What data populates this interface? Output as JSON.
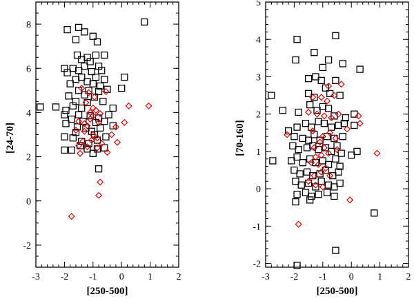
{
  "chart_data": [
    {
      "type": "scatter",
      "title": "",
      "xlabel": "[250-500]",
      "ylabel": "[24-70]",
      "xlim": [
        -3,
        2
      ],
      "ylim": [
        -3,
        9
      ],
      "xticks": [
        "-3",
        "-2",
        "-1",
        "0",
        "1",
        "2"
      ],
      "yticks": [
        "-2",
        "0",
        "2",
        "4",
        "6",
        "8"
      ],
      "series": [
        {
          "name": "black squares",
          "marker": "square",
          "color": "#000000",
          "points": [
            [
              -1.9,
              7.75
            ],
            [
              -1.5,
              7.85
            ],
            [
              -1.3,
              7.65
            ],
            [
              -1.6,
              7.3
            ],
            [
              -1.0,
              7.45
            ],
            [
              -0.85,
              7.2
            ],
            [
              0.8,
              8.1
            ],
            [
              -1.4,
              6.4
            ],
            [
              -1.2,
              6.5
            ],
            [
              -1.1,
              6.3
            ],
            [
              -0.9,
              6.6
            ],
            [
              -1.55,
              6.6
            ],
            [
              -0.6,
              6.6
            ],
            [
              -2.0,
              6.0
            ],
            [
              -1.7,
              6.0
            ],
            [
              -1.9,
              5.8
            ],
            [
              -1.5,
              5.9
            ],
            [
              -1.3,
              6.1
            ],
            [
              -0.8,
              6.1
            ],
            [
              -0.7,
              5.9
            ],
            [
              -1.05,
              5.85
            ],
            [
              -1.6,
              5.5
            ],
            [
              -1.4,
              5.6
            ],
            [
              -1.2,
              5.4
            ],
            [
              -0.9,
              5.6
            ],
            [
              -0.6,
              5.5
            ],
            [
              0.1,
              5.6
            ],
            [
              -1.8,
              5.3
            ],
            [
              -1.0,
              5.3
            ],
            [
              -0.75,
              5.2
            ],
            [
              -1.5,
              5.0
            ],
            [
              -1.15,
              5.0
            ],
            [
              -0.8,
              4.95
            ],
            [
              -0.5,
              5.05
            ],
            [
              0.0,
              5.1
            ],
            [
              -1.3,
              4.8
            ],
            [
              -1.85,
              4.75
            ],
            [
              -0.95,
              4.7
            ],
            [
              -2.85,
              4.25
            ],
            [
              -2.3,
              4.25
            ],
            [
              -1.95,
              4.1
            ],
            [
              -1.7,
              4.3
            ],
            [
              -1.4,
              4.2
            ],
            [
              -1.6,
              4.5
            ],
            [
              -1.2,
              4.45
            ],
            [
              -0.65,
              4.5
            ],
            [
              -0.3,
              4.2
            ],
            [
              -2.0,
              3.9
            ],
            [
              -1.5,
              3.9
            ],
            [
              -1.1,
              3.85
            ],
            [
              -0.8,
              3.75
            ],
            [
              -0.45,
              3.9
            ],
            [
              -1.75,
              3.7
            ],
            [
              -1.35,
              3.6
            ],
            [
              -0.9,
              3.55
            ],
            [
              -0.6,
              3.6
            ],
            [
              -1.95,
              3.5
            ],
            [
              -1.55,
              3.35
            ],
            [
              -1.25,
              3.3
            ],
            [
              -0.75,
              3.3
            ],
            [
              -0.3,
              3.4
            ],
            [
              -1.6,
              3.1
            ],
            [
              -1.05,
              3.15
            ],
            [
              -0.95,
              3.0
            ],
            [
              -2.0,
              2.9
            ],
            [
              -1.7,
              2.85
            ],
            [
              -1.4,
              2.7
            ],
            [
              -1.15,
              2.6
            ],
            [
              -0.85,
              2.75
            ],
            [
              -0.55,
              2.9
            ],
            [
              -1.45,
              2.5
            ],
            [
              -0.6,
              2.4
            ],
            [
              -2.0,
              2.3
            ],
            [
              -1.75,
              2.3
            ],
            [
              -1.2,
              2.35
            ],
            [
              -0.85,
              2.35
            ],
            [
              -1.0,
              2.15
            ],
            [
              -0.8,
              1.45
            ]
          ]
        },
        {
          "name": "red diamonds",
          "marker": "diamond",
          "color": "#e00000",
          "points": [
            [
              -1.4,
              5.1
            ],
            [
              -1.15,
              4.9
            ],
            [
              -0.95,
              4.7
            ],
            [
              -0.55,
              4.95
            ],
            [
              -1.25,
              4.45
            ],
            [
              -1.0,
              4.2
            ],
            [
              -0.9,
              4.1
            ],
            [
              -1.1,
              4.0
            ],
            [
              -0.75,
              3.95
            ],
            [
              -1.0,
              3.85
            ],
            [
              0.25,
              4.3
            ],
            [
              0.95,
              4.3
            ],
            [
              -1.5,
              3.6
            ],
            [
              -1.3,
              3.5
            ],
            [
              -1.1,
              3.7
            ],
            [
              -0.8,
              3.55
            ],
            [
              -1.2,
              3.4
            ],
            [
              0.1,
              3.55
            ],
            [
              -0.2,
              3.35
            ],
            [
              -1.6,
              3.2
            ],
            [
              -1.3,
              3.15
            ],
            [
              -1.0,
              3.0
            ],
            [
              -0.35,
              3.0
            ],
            [
              -0.85,
              2.85
            ],
            [
              -1.05,
              2.75
            ],
            [
              -1.35,
              2.7
            ],
            [
              -0.7,
              2.6
            ],
            [
              -1.5,
              2.5
            ],
            [
              -1.2,
              2.45
            ],
            [
              -0.85,
              2.4
            ],
            [
              -0.15,
              2.65
            ],
            [
              -1.45,
              2.15
            ],
            [
              -0.5,
              2.2
            ],
            [
              -0.75,
              0.85
            ],
            [
              -0.8,
              0.25
            ],
            [
              -1.75,
              -0.7
            ]
          ]
        }
      ]
    },
    {
      "type": "scatter",
      "title": "",
      "xlabel": "[250-500]",
      "ylabel": "[70-160]",
      "xlim": [
        -3,
        2
      ],
      "ylim": [
        -2.1,
        5
      ],
      "xticks": [
        "-3",
        "-2",
        "-1",
        "0",
        "1",
        "2"
      ],
      "yticks": [
        "-2",
        "-1",
        "0",
        "1",
        "2",
        "3",
        "4",
        "5"
      ],
      "series": [
        {
          "name": "black squares",
          "marker": "square",
          "color": "#000000",
          "points": [
            [
              -1.9,
              4.0
            ],
            [
              -0.55,
              4.1
            ],
            [
              -1.3,
              3.65
            ],
            [
              -1.95,
              3.45
            ],
            [
              -0.8,
              3.45
            ],
            [
              -0.3,
              3.35
            ],
            [
              0.3,
              3.2
            ],
            [
              -1.0,
              3.25
            ],
            [
              -2.8,
              2.5
            ],
            [
              -1.5,
              2.95
            ],
            [
              -1.25,
              3.0
            ],
            [
              -1.05,
              2.9
            ],
            [
              -0.55,
              2.9
            ],
            [
              -1.5,
              2.55
            ],
            [
              -1.3,
              2.45
            ],
            [
              -0.9,
              2.7
            ],
            [
              -0.75,
              2.55
            ],
            [
              -0.4,
              2.5
            ],
            [
              -2.4,
              2.1
            ],
            [
              -1.85,
              2.05
            ],
            [
              -1.45,
              2.25
            ],
            [
              -1.2,
              2.1
            ],
            [
              -1.0,
              2.2
            ],
            [
              -0.8,
              2.15
            ],
            [
              -0.6,
              1.95
            ],
            [
              -0.2,
              1.9
            ],
            [
              0.1,
              2.0
            ],
            [
              -2.2,
              1.55
            ],
            [
              -1.9,
              1.65
            ],
            [
              -1.6,
              1.75
            ],
            [
              -1.4,
              1.65
            ],
            [
              -1.15,
              1.8
            ],
            [
              -0.95,
              1.75
            ],
            [
              -0.7,
              1.65
            ],
            [
              -0.45,
              1.7
            ],
            [
              -0.25,
              1.75
            ],
            [
              0.1,
              1.7
            ],
            [
              -2.0,
              1.4
            ],
            [
              -1.7,
              1.35
            ],
            [
              -1.5,
              1.3
            ],
            [
              -1.3,
              1.45
            ],
            [
              -1.1,
              1.3
            ],
            [
              -0.85,
              1.4
            ],
            [
              -0.6,
              1.35
            ],
            [
              -0.3,
              1.4
            ],
            [
              -2.05,
              1.15
            ],
            [
              -1.85,
              1.05
            ],
            [
              -1.55,
              1.1
            ],
            [
              -1.35,
              1.15
            ],
            [
              -1.15,
              1.05
            ],
            [
              -0.9,
              1.1
            ],
            [
              -0.7,
              1.0
            ],
            [
              -0.5,
              1.15
            ],
            [
              -0.35,
              0.95
            ],
            [
              0.2,
              1.0
            ],
            [
              0.0,
              0.9
            ],
            [
              -2.75,
              0.75
            ],
            [
              -2.1,
              0.75
            ],
            [
              -1.9,
              0.85
            ],
            [
              -1.7,
              0.7
            ],
            [
              -1.45,
              0.8
            ],
            [
              -1.25,
              0.7
            ],
            [
              -1.0,
              0.75
            ],
            [
              -0.8,
              0.65
            ],
            [
              -0.55,
              0.8
            ],
            [
              -0.4,
              0.6
            ],
            [
              -2.0,
              0.5
            ],
            [
              -1.8,
              0.4
            ],
            [
              -1.55,
              0.45
            ],
            [
              -1.35,
              0.35
            ],
            [
              -1.1,
              0.4
            ],
            [
              -0.9,
              0.5
            ],
            [
              -0.65,
              0.35
            ],
            [
              -0.45,
              0.45
            ],
            [
              -1.95,
              0.2
            ],
            [
              -1.75,
              0.1
            ],
            [
              -1.5,
              0.15
            ],
            [
              -1.25,
              0.05
            ],
            [
              -1.05,
              0.2
            ],
            [
              -0.8,
              0.1
            ],
            [
              -0.6,
              0.05
            ],
            [
              -0.4,
              0.15
            ],
            [
              -1.9,
              -0.15
            ],
            [
              -1.6,
              -0.1
            ],
            [
              -1.4,
              -0.2
            ],
            [
              -1.15,
              -0.15
            ],
            [
              -0.85,
              -0.1
            ],
            [
              -0.6,
              -0.2
            ],
            [
              -1.95,
              -0.35
            ],
            [
              -1.45,
              -0.3
            ],
            [
              0.8,
              -0.65
            ],
            [
              -0.55,
              -1.65
            ],
            [
              -1.9,
              -2.05
            ]
          ]
        },
        {
          "name": "red diamonds",
          "marker": "diamond",
          "color": "#e00000",
          "points": [
            [
              -0.35,
              2.8
            ],
            [
              -0.8,
              2.75
            ],
            [
              -1.05,
              2.45
            ],
            [
              -1.35,
              2.45
            ],
            [
              -0.6,
              2.5
            ],
            [
              -0.85,
              2.35
            ],
            [
              -1.5,
              2.05
            ],
            [
              -1.2,
              2.0
            ],
            [
              -0.95,
              1.95
            ],
            [
              -0.7,
              1.9
            ],
            [
              -0.45,
              2.0
            ],
            [
              0.25,
              1.95
            ],
            [
              0.3,
              1.75
            ],
            [
              -0.15,
              1.6
            ],
            [
              -2.25,
              1.45
            ],
            [
              -1.35,
              1.55
            ],
            [
              -1.0,
              1.4
            ],
            [
              -0.75,
              1.5
            ],
            [
              -0.55,
              1.35
            ],
            [
              -1.1,
              1.25
            ],
            [
              -1.3,
              1.1
            ],
            [
              -0.95,
              1.1
            ],
            [
              -0.8,
              0.95
            ],
            [
              -1.05,
              0.9
            ],
            [
              -1.25,
              0.85
            ],
            [
              -0.5,
              1.05
            ],
            [
              0.9,
              0.95
            ],
            [
              -1.4,
              0.7
            ],
            [
              -1.15,
              0.65
            ],
            [
              -0.9,
              0.55
            ],
            [
              -1.05,
              0.45
            ],
            [
              -1.3,
              0.35
            ],
            [
              -0.75,
              0.35
            ],
            [
              -1.5,
              0.2
            ],
            [
              -1.25,
              0.1
            ],
            [
              -1.0,
              0.05
            ],
            [
              -0.05,
              -0.3
            ],
            [
              -1.85,
              -0.95
            ]
          ]
        }
      ]
    }
  ]
}
